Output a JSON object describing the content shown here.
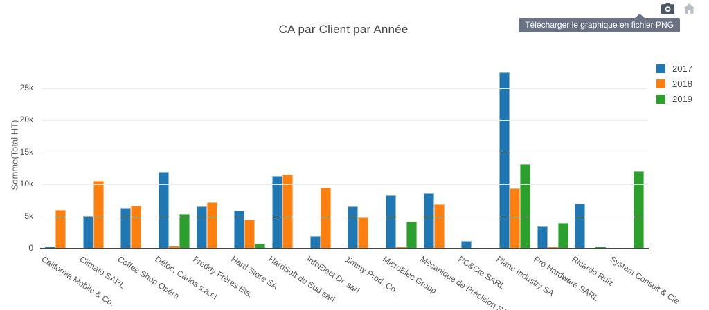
{
  "header": {
    "title": "CA par Client par Année",
    "tooltip": "Télécharger le graphique en fichier PNG"
  },
  "modebar": {
    "buttons": [
      {
        "icon": "camera-icon",
        "label": "Télécharger le graphique en fichier PNG",
        "color": "#4d5866"
      },
      {
        "icon": "home-icon",
        "label": "",
        "color": "#b9bfc7"
      }
    ],
    "tooltip_bg": "#697384"
  },
  "chart_data": {
    "type": "bar",
    "title": "CA par Client par Année",
    "xlabel": "",
    "ylabel": "Somme(Total HT)",
    "ylim": [
      0,
      28000
    ],
    "ytick_values": [
      0,
      5000,
      10000,
      15000,
      20000,
      25000
    ],
    "ytick_labels": [
      "0",
      "5k",
      "10k",
      "15k",
      "20k",
      "25k"
    ],
    "grid": true,
    "legend_position": "right",
    "categories": [
      "California Mobile & Co.",
      "Climato SARL",
      "Coffee Shop Opéra",
      "Déloc. Carlos s.a.r.l",
      "Freddy Frères Ets.",
      "Hard Store SA",
      "HardSoft du Sud sarl",
      "InfoElect Dr. sarl",
      "Jimmy Prod. Co.",
      "MicroElec Group",
      "Mécanique de Précision SARL",
      "PC&Cie SARL",
      "Plane Industry SA",
      "Pro Hardware SARL",
      "Ricardo Ruiz",
      "System Consult & Cie"
    ],
    "series": [
      {
        "name": "2017",
        "color": "#1f77b4",
        "edge": "#8ab9da",
        "values": [
          150,
          5100,
          6400,
          12000,
          6600,
          5900,
          11300,
          1900,
          6600,
          8300,
          8600,
          1200,
          27500,
          3400,
          7000,
          null
        ]
      },
      {
        "name": "2018",
        "color": "#ff7f0e",
        "edge": "#ffb877",
        "values": [
          6000,
          10600,
          6700,
          350,
          7250,
          4500,
          11500,
          9500,
          4800,
          150,
          6900,
          null,
          9400,
          200,
          null,
          null
        ]
      },
      {
        "name": "2019",
        "color": "#2ca02c",
        "edge": "#82c882",
        "values": [
          null,
          null,
          null,
          5400,
          null,
          800,
          null,
          null,
          null,
          4200,
          null,
          null,
          13100,
          4000,
          150,
          12100
        ]
      }
    ]
  }
}
